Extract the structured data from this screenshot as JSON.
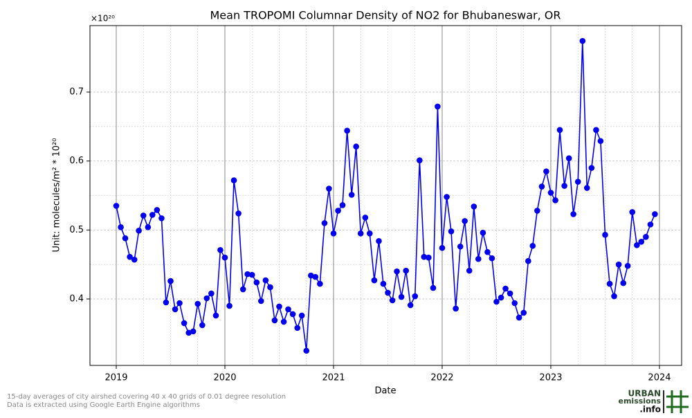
{
  "chart_data": {
    "type": "line",
    "title": "Mean TROPOMI Columnar Density of NO2 for Bhubaneswar, OR",
    "xlabel": "Date",
    "ylabel": "Unit: molecules/m² * 10²⁰",
    "y_offset_label": "×10²⁰",
    "footnote": [
      "15-day averages of city airshed covering 40 x 40 grids of 0.01 degree resolution",
      "Data is extracted using Google Earth Engine algorithms"
    ],
    "logo": [
      "URBAN",
      "emissions",
      ".info"
    ],
    "x": [
      2019.0,
      2019.042,
      2019.083,
      2019.125,
      2019.167,
      2019.208,
      2019.25,
      2019.292,
      2019.333,
      2019.375,
      2019.417,
      2019.458,
      2019.5,
      2019.542,
      2019.583,
      2019.625,
      2019.667,
      2019.708,
      2019.75,
      2019.792,
      2019.833,
      2019.875,
      2019.917,
      2019.958,
      2020.0,
      2020.042,
      2020.083,
      2020.125,
      2020.167,
      2020.208,
      2020.25,
      2020.292,
      2020.333,
      2020.375,
      2020.417,
      2020.458,
      2020.5,
      2020.542,
      2020.583,
      2020.625,
      2020.667,
      2020.708,
      2020.75,
      2020.792,
      2020.833,
      2020.875,
      2020.917,
      2020.958,
      2021.0,
      2021.042,
      2021.083,
      2021.125,
      2021.167,
      2021.208,
      2021.25,
      2021.292,
      2021.333,
      2021.375,
      2021.417,
      2021.458,
      2021.5,
      2021.542,
      2021.583,
      2021.625,
      2021.667,
      2021.708,
      2021.75,
      2021.792,
      2021.833,
      2021.875,
      2021.917,
      2021.958,
      2022.0,
      2022.042,
      2022.083,
      2022.125,
      2022.167,
      2022.208,
      2022.25,
      2022.292,
      2022.333,
      2022.375,
      2022.417,
      2022.458,
      2022.5,
      2022.542,
      2022.583,
      2022.625,
      2022.667,
      2022.708,
      2022.75,
      2022.792,
      2022.833,
      2022.875,
      2022.917,
      2022.958,
      2023.0,
      2023.042,
      2023.083,
      2023.125,
      2023.167,
      2023.208,
      2023.25,
      2023.292,
      2023.333,
      2023.375,
      2023.417,
      2023.458,
      2023.5,
      2023.542,
      2023.583,
      2023.625,
      2023.667,
      2023.708,
      2023.75,
      2023.792,
      2023.833,
      2023.875,
      2023.917,
      2023.958
    ],
    "series": [
      {
        "name": "NO2",
        "color": "#0000ee",
        "values": [
          0.535,
          0.504,
          0.488,
          0.461,
          0.457,
          0.499,
          0.521,
          0.504,
          0.522,
          0.529,
          0.517,
          0.395,
          0.426,
          0.385,
          0.394,
          0.365,
          0.351,
          0.353,
          0.393,
          0.362,
          0.401,
          0.408,
          0.376,
          0.471,
          0.46,
          0.39,
          0.572,
          0.524,
          0.414,
          0.436,
          0.435,
          0.424,
          0.397,
          0.427,
          0.417,
          0.369,
          0.389,
          0.367,
          0.385,
          0.378,
          0.358,
          0.376,
          0.325,
          0.434,
          0.432,
          0.422,
          0.51,
          0.56,
          0.495,
          0.528,
          0.536,
          0.644,
          0.551,
          0.621,
          0.495,
          0.518,
          0.495,
          0.427,
          0.484,
          0.422,
          0.409,
          0.398,
          0.44,
          0.403,
          0.441,
          0.391,
          0.404,
          0.601,
          0.461,
          0.46,
          0.416,
          0.679,
          0.474,
          0.548,
          0.498,
          0.386,
          0.476,
          0.513,
          0.441,
          0.534,
          0.458,
          0.496,
          0.468,
          0.459,
          0.396,
          0.402,
          0.415,
          0.408,
          0.394,
          0.373,
          0.38,
          0.455,
          0.477,
          0.528,
          0.563,
          0.585,
          0.554,
          0.543,
          0.645,
          0.564,
          0.604,
          0.523,
          0.57,
          0.774,
          0.561,
          0.59,
          0.645,
          0.629,
          0.493,
          0.422,
          0.404,
          0.45,
          0.423,
          0.448,
          0.526,
          0.478,
          0.483,
          0.49,
          0.508,
          0.523
        ]
      }
    ],
    "xlim": [
      2018.758,
      2024.204
    ],
    "xticks": [
      2019,
      2020,
      2021,
      2022,
      2023,
      2024
    ],
    "ylim": [
      0.3037,
      0.7963
    ],
    "yticks": [
      0.4,
      0.5,
      0.6,
      0.7
    ],
    "grid": true,
    "minor_grid": true
  }
}
